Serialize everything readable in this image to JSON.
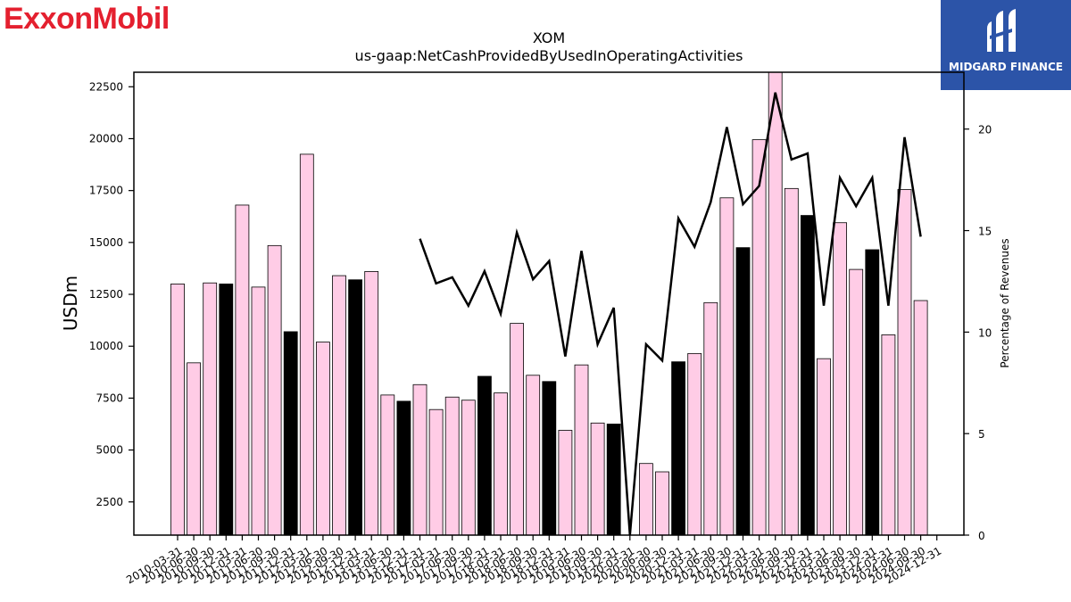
{
  "logos": {
    "left_text": "ExxonMobil",
    "right_text": "MIDGARD FINANCE"
  },
  "chart_data": {
    "type": "bar",
    "title": "XOM",
    "subtitle": "us-gaap:NetCashProvidedByUsedInOperatingActivities",
    "ylabel": "USDm",
    "y2label": "Percentage of Revenues",
    "ylim": [
      900,
      23200
    ],
    "y2lim": [
      0,
      22.8
    ],
    "yticks": [
      2500,
      5000,
      7500,
      10000,
      12500,
      15000,
      17500,
      20000,
      22500
    ],
    "y2ticks": [
      0,
      5,
      10,
      15,
      20
    ],
    "grid": false,
    "colors": {
      "quarter_bar": "#ffcce6",
      "annual_bar": "#000000",
      "line": "#000000",
      "edge": "#000000"
    },
    "categories": [
      "2010-03-31",
      "2010-06-30",
      "2010-09-30",
      "2010-12-31",
      "2011-03-31",
      "2011-06-30",
      "2011-09-30",
      "2011-12-31",
      "2012-03-31",
      "2012-06-30",
      "2012-09-30",
      "2012-12-31",
      "2013-03-31",
      "2013-06-30",
      "2013-12-31",
      "2016-12-31",
      "2017-03-31",
      "2017-06-30",
      "2017-09-30",
      "2017-12-31",
      "2018-03-31",
      "2018-06-30",
      "2018-09-30",
      "2018-12-31",
      "2019-03-31",
      "2019-06-30",
      "2019-09-30",
      "2019-12-31",
      "2020-03-31",
      "2020-06-30",
      "2020-09-30",
      "2020-12-31",
      "2021-03-31",
      "2021-06-30",
      "2021-09-30",
      "2021-12-31",
      "2022-03-31",
      "2022-06-30",
      "2022-09-30",
      "2022-12-31",
      "2023-03-31",
      "2023-06-30",
      "2023-09-30",
      "2023-12-31",
      "2024-03-31",
      "2024-06-30",
      "2024-09-30",
      "2024-12-31"
    ],
    "bar_values": [
      13000,
      9200,
      13050,
      13000,
      16800,
      12850,
      14850,
      10700,
      19250,
      10200,
      13400,
      13200,
      13600,
      7650,
      7350,
      8150,
      6950,
      7550,
      7400,
      8550,
      7750,
      11100,
      8600,
      8300,
      5950,
      9100,
      6300,
      6250,
      null,
      4350,
      3950,
      9250,
      9650,
      12100,
      17150,
      14750,
      19950,
      23200,
      17600,
      16300,
      9400,
      15950,
      13700,
      14650,
      10550,
      17550,
      12200,
      null
    ],
    "annual": [
      false,
      false,
      false,
      true,
      false,
      false,
      false,
      true,
      false,
      false,
      false,
      true,
      false,
      false,
      true,
      false,
      false,
      false,
      false,
      true,
      false,
      false,
      false,
      true,
      false,
      false,
      false,
      true,
      false,
      false,
      false,
      true,
      false,
      false,
      false,
      true,
      false,
      false,
      false,
      true,
      false,
      false,
      false,
      true,
      false,
      false,
      false,
      true
    ],
    "pct_values": [
      null,
      null,
      null,
      null,
      null,
      null,
      null,
      null,
      null,
      null,
      null,
      null,
      null,
      null,
      null,
      14.6,
      12.4,
      12.7,
      11.3,
      13.0,
      10.9,
      14.9,
      12.6,
      13.5,
      8.8,
      14.0,
      9.4,
      11.2,
      0.0,
      9.4,
      8.6,
      15.6,
      14.2,
      16.4,
      20.1,
      16.3,
      17.2,
      21.8,
      18.5,
      18.8,
      11.3,
      17.6,
      16.2,
      17.6,
      11.3,
      19.6,
      14.7,
      null
    ]
  }
}
